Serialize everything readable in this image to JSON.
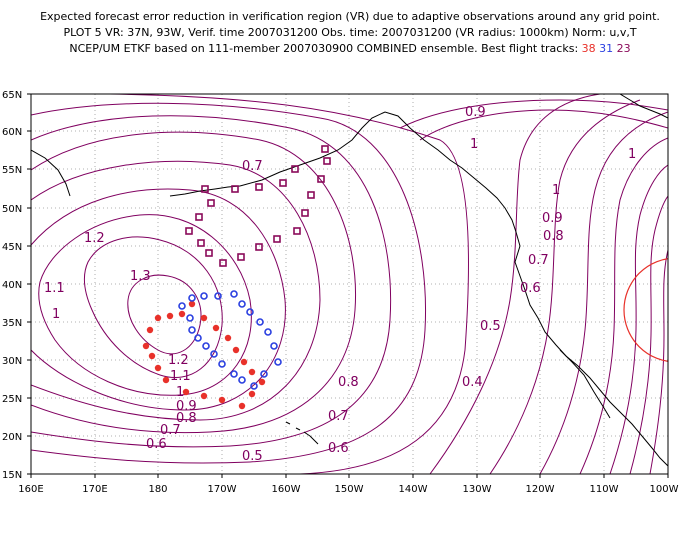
{
  "header": {
    "line1": "Expected forecast error reduction in verification region (VR) due to adaptive observations around any grid point.",
    "line2": "PLOT 5 VR: 37N, 93W, Verif. time 2007031200 Obs. time: 2007031200 (VR radius: 1000km) Norm: u,v,T",
    "line3_prefix": "NCEP/UM ETKF based on 111-member 2007030900 COMBINED ensemble.  Best flight tracks:",
    "track1": "38",
    "track2": "31",
    "track3": "23"
  },
  "axes": {
    "lat_labels": [
      "65N",
      "60N",
      "55N",
      "50N",
      "45N",
      "40N",
      "35N",
      "30N",
      "25N",
      "20N",
      "15N"
    ],
    "lon_labels": [
      "160E",
      "170E",
      "180",
      "170W",
      "160W",
      "150W",
      "140W",
      "130W",
      "120W",
      "110W",
      "100W"
    ]
  },
  "colors": {
    "contour": "#800060",
    "coast": "#000000",
    "grid": "#999999",
    "track38": "#e8312a",
    "track31": "#2a3fe0",
    "track23": "#8a0a5a",
    "vr_circle": "#e8312a"
  },
  "contour_labels": [
    "0.9",
    "1",
    "1",
    "1",
    "0.7",
    "0.9",
    "0.8",
    "1.2",
    "0.7",
    "1.3",
    "0.6",
    "1.1",
    "1",
    "0.5",
    "1.2",
    "1.1",
    "0.4",
    "0.8",
    "1",
    "0.9",
    "0.7",
    "0.8",
    "0.7",
    "0.6",
    "0.6",
    "0.5"
  ],
  "tracks": {
    "t38_name": "Track 38",
    "t31_name": "Track 31",
    "t23_name": "Track 23"
  }
}
